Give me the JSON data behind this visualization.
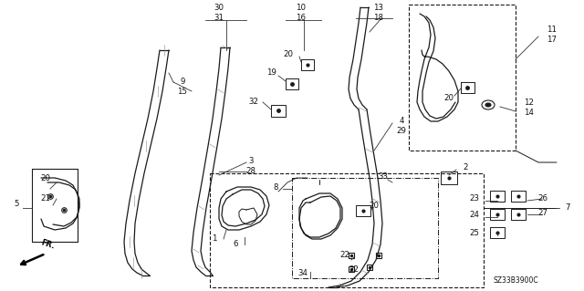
{
  "bg_color": "#ffffff",
  "line_color": "#1a1a1a",
  "fig_width": 6.4,
  "fig_height": 3.19,
  "dpi": 100,
  "diagram_id": "SZ33B3900C"
}
